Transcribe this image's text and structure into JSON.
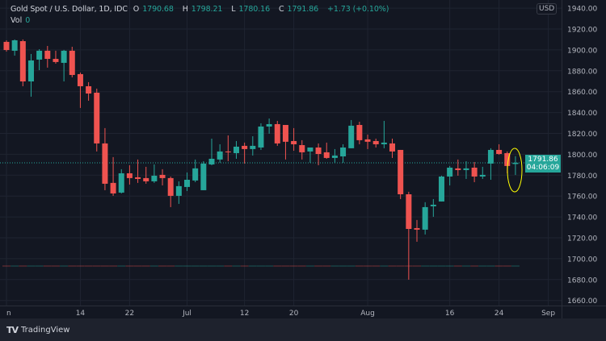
{
  "header": {
    "symbol": "Gold Spot / U.S. Dollar, 1D, IDC",
    "open_label": "O",
    "open": "1790.68",
    "high_label": "H",
    "high": "1798.21",
    "low_label": "L",
    "low": "1780.16",
    "close_label": "C",
    "close": "1791.86",
    "change": "+1.73 (+0.10%)",
    "vol_label": "Vol",
    "vol": "0"
  },
  "currency_badge": "USD",
  "last_price_label": {
    "price": "1791.86",
    "countdown": "04:06:09"
  },
  "footer": {
    "brand": "TradingView"
  },
  "colors": {
    "up": "#26a69a",
    "down": "#ef5350",
    "background": "#131722",
    "grid": "#1f2431",
    "text": "#b2b5be",
    "highlight_ellipse": "#ffff00"
  },
  "chart_data": {
    "type": "candlestick",
    "title": "Gold Spot / U.S. Dollar, 1D, IDC",
    "ylim": [
      1660,
      1940
    ],
    "grid": true,
    "last_price": 1791.86,
    "y_ticks": [
      "1940.00",
      "1920.00",
      "1900.00",
      "1880.00",
      "1860.00",
      "1840.00",
      "1820.00",
      "1800.00",
      "1780.00",
      "1760.00",
      "1740.00",
      "1720.00",
      "1700.00",
      "1680.00",
      "1660.00"
    ],
    "x_ticks": [
      {
        "label": "n",
        "bar": 1
      },
      {
        "label": "14",
        "bar": 10
      },
      {
        "label": "22",
        "bar": 16
      },
      {
        "label": "Jul",
        "bar": 23
      },
      {
        "label": "12",
        "bar": 30
      },
      {
        "label": "20",
        "bar": 36
      },
      {
        "label": "Aug",
        "bar": 45
      },
      {
        "label": "16",
        "bar": 55
      },
      {
        "label": "24",
        "bar": 61
      },
      {
        "label": "Sep",
        "bar": 67
      }
    ],
    "ohlc": [
      [
        1907.7,
        1909.2,
        1898.4,
        1899.9
      ],
      [
        1899.2,
        1910.0,
        1894.5,
        1909.2
      ],
      [
        1908.4,
        1910.0,
        1865.2,
        1869.8
      ],
      [
        1869.8,
        1896.1,
        1855.2,
        1889.9
      ],
      [
        1890.7,
        1900.7,
        1880.6,
        1899.2
      ],
      [
        1899.2,
        1903.8,
        1883.0,
        1891.4
      ],
      [
        1891.4,
        1899.2,
        1886.8,
        1888.4
      ],
      [
        1887.6,
        1900.0,
        1869.8,
        1899.2
      ],
      [
        1899.2,
        1903.0,
        1873.7,
        1876.0
      ],
      [
        1876.8,
        1878.3,
        1844.4,
        1865.2
      ],
      [
        1865.2,
        1869.1,
        1851.3,
        1858.2
      ],
      [
        1859.0,
        1862.9,
        1802.7,
        1810.4
      ],
      [
        1810.4,
        1825.1,
        1765.6,
        1771.8
      ],
      [
        1772.6,
        1797.3,
        1760.2,
        1762.5
      ],
      [
        1763.3,
        1785.7,
        1762.5,
        1781.8
      ],
      [
        1781.8,
        1789.5,
        1771.0,
        1777.2
      ],
      [
        1778.0,
        1795.0,
        1772.6,
        1776.4
      ],
      [
        1777.2,
        1788.0,
        1771.8,
        1774.1
      ],
      [
        1774.1,
        1790.3,
        1772.6,
        1779.5
      ],
      [
        1780.3,
        1785.7,
        1770.2,
        1777.2
      ],
      [
        1777.2,
        1778.7,
        1749.4,
        1760.2
      ],
      [
        1760.2,
        1774.1,
        1752.5,
        1769.5
      ],
      [
        1768.7,
        1782.6,
        1764.8,
        1775.6
      ],
      [
        1774.9,
        1795.0,
        1773.3,
        1786.5
      ],
      [
        1765.6,
        1793.4,
        1765.6,
        1791.1
      ],
      [
        1790.3,
        1815.0,
        1789.5,
        1795.7
      ],
      [
        1795.0,
        1809.6,
        1791.9,
        1802.7
      ],
      [
        1802.7,
        1818.1,
        1793.4,
        1801.9
      ],
      [
        1801.1,
        1812.7,
        1795.7,
        1807.3
      ],
      [
        1808.1,
        1811.2,
        1791.1,
        1805.0
      ],
      [
        1805.0,
        1817.3,
        1798.8,
        1808.1
      ],
      [
        1806.5,
        1829.7,
        1804.2,
        1826.6
      ],
      [
        1826.6,
        1834.3,
        1819.7,
        1828.9
      ],
      [
        1828.9,
        1832.0,
        1808.1,
        1810.4
      ],
      [
        1828.1,
        1828.1,
        1795.0,
        1812.0
      ],
      [
        1812.7,
        1825.1,
        1803.4,
        1809.6
      ],
      [
        1808.8,
        1813.5,
        1795.0,
        1801.9
      ],
      [
        1802.7,
        1806.5,
        1791.9,
        1806.5
      ],
      [
        1806.5,
        1810.4,
        1789.5,
        1800.3
      ],
      [
        1801.9,
        1811.2,
        1795.7,
        1796.5
      ],
      [
        1796.5,
        1805.0,
        1791.9,
        1798.8
      ],
      [
        1798.0,
        1809.6,
        1791.9,
        1806.5
      ],
      [
        1805.8,
        1832.8,
        1805.8,
        1827.4
      ],
      [
        1828.1,
        1831.2,
        1809.6,
        1813.5
      ],
      [
        1814.3,
        1818.9,
        1805.0,
        1812.0
      ],
      [
        1812.7,
        1815.0,
        1806.5,
        1809.6
      ],
      [
        1809.6,
        1832.0,
        1805.8,
        1811.2
      ],
      [
        1810.4,
        1815.0,
        1796.5,
        1802.7
      ],
      [
        1804.2,
        1804.2,
        1757.1,
        1761.7
      ],
      [
        1761.7,
        1764.1,
        1679.9,
        1728.5
      ],
      [
        1729.3,
        1737.1,
        1716.2,
        1727.8
      ],
      [
        1727.8,
        1754.1,
        1723.2,
        1749.4
      ],
      [
        1750.2,
        1757.1,
        1740.1,
        1751.7
      ],
      [
        1754.8,
        1779.5,
        1754.8,
        1778.7
      ],
      [
        1778.7,
        1788.8,
        1770.2,
        1787.2
      ],
      [
        1786.5,
        1795.0,
        1779.5,
        1784.9
      ],
      [
        1784.9,
        1793.4,
        1776.4,
        1786.5
      ],
      [
        1787.2,
        1792.6,
        1773.3,
        1778.7
      ],
      [
        1778.7,
        1788.0,
        1776.4,
        1780.3
      ],
      [
        1791.1,
        1805.8,
        1775.6,
        1804.2
      ],
      [
        1804.2,
        1809.6,
        1799.6,
        1800.3
      ],
      [
        1801.1,
        1802.7,
        1781.8,
        1788.8
      ],
      [
        1790.68,
        1798.21,
        1780.16,
        1791.86
      ]
    ]
  }
}
